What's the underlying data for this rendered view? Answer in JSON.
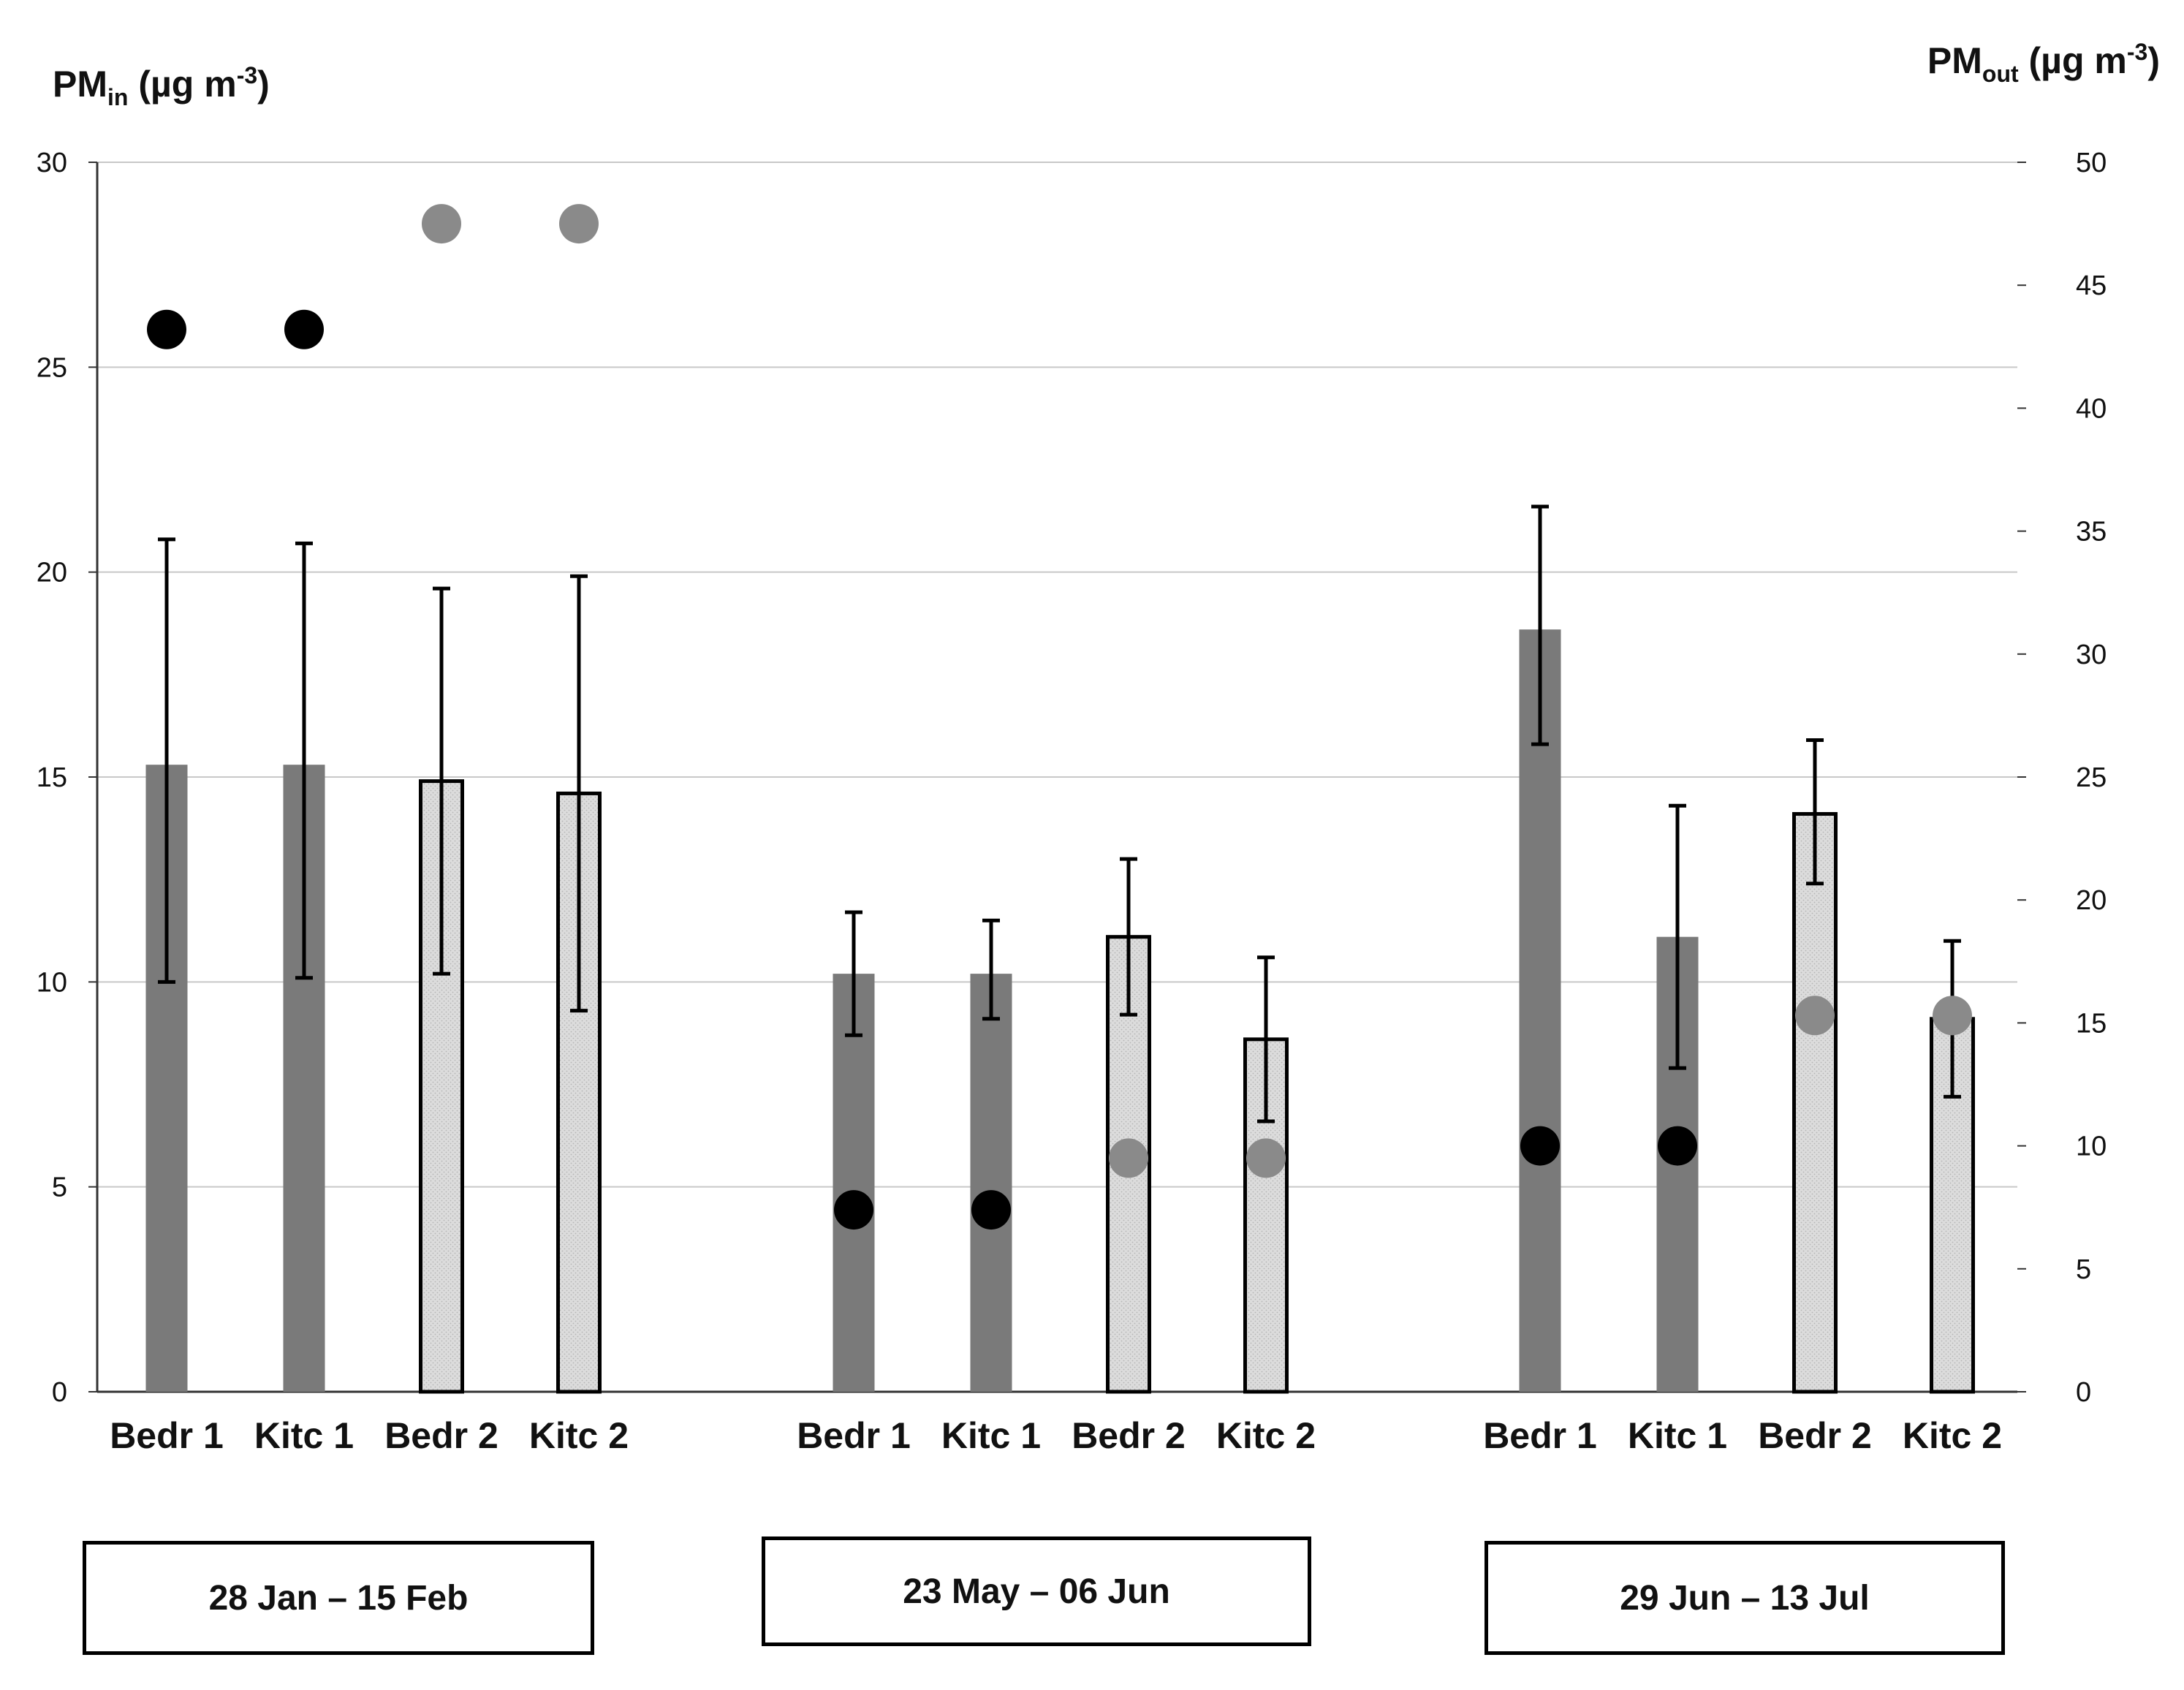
{
  "chart_data": {
    "type": "bar",
    "title": "",
    "left_axis": {
      "label_main": "PM",
      "label_sub": "in",
      "label_unit_pre": " (µg m",
      "label_unit_sup": "-3",
      "label_unit_post": ")",
      "ylim": [
        0,
        30
      ],
      "ticks": [
        0,
        5,
        10,
        15,
        20,
        25,
        30
      ]
    },
    "right_axis": {
      "label_main": "PM",
      "label_sub": "out",
      "label_unit_pre": " (µg m",
      "label_unit_sup": "-3",
      "label_unit_post": ")",
      "ylim": [
        0,
        50
      ],
      "ticks": [
        0,
        5,
        10,
        15,
        20,
        25,
        30,
        35,
        40,
        45,
        50
      ]
    },
    "grid": true,
    "groups": [
      {
        "period": "28 Jan – 15 Feb",
        "bars": [
          {
            "category": "Bedr 1",
            "style": "dark",
            "value": 15.3,
            "err_low": 10.0,
            "err_high": 20.8,
            "pm_out": 43.2,
            "dot": "black"
          },
          {
            "category": "Kitc 1",
            "style": "dark",
            "value": 15.3,
            "err_low": 10.1,
            "err_high": 20.7,
            "pm_out": 43.2,
            "dot": "black"
          },
          {
            "category": "Bedr 2",
            "style": "light",
            "value": 14.9,
            "err_low": 10.2,
            "err_high": 19.6,
            "pm_out": 47.5,
            "dot": "gray"
          },
          {
            "category": "Kitc 2",
            "style": "light",
            "value": 14.6,
            "err_low": 9.3,
            "err_high": 19.9,
            "pm_out": 47.5,
            "dot": "gray"
          }
        ]
      },
      {
        "period": "23 May – 06 Jun",
        "bars": [
          {
            "category": "Bedr 1",
            "style": "dark",
            "value": 10.2,
            "err_low": 8.7,
            "err_high": 11.7,
            "pm_out": 7.4,
            "dot": "black"
          },
          {
            "category": "Kitc 1",
            "style": "dark",
            "value": 10.2,
            "err_low": 9.1,
            "err_high": 11.5,
            "pm_out": 7.4,
            "dot": "black"
          },
          {
            "category": "Bedr 2",
            "style": "light",
            "value": 11.1,
            "err_low": 9.2,
            "err_high": 13.0,
            "pm_out": 9.5,
            "dot": "gray"
          },
          {
            "category": "Kitc 2",
            "style": "light",
            "value": 8.6,
            "err_low": 6.6,
            "err_high": 10.6,
            "pm_out": 9.5,
            "dot": "gray"
          }
        ]
      },
      {
        "period": "29 Jun – 13 Jul",
        "bars": [
          {
            "category": "Bedr 1",
            "style": "dark",
            "value": 18.6,
            "err_low": 15.8,
            "err_high": 21.6,
            "pm_out": 10.0,
            "dot": "black"
          },
          {
            "category": "Kitc 1",
            "style": "dark",
            "value": 11.1,
            "err_low": 7.9,
            "err_high": 14.3,
            "pm_out": 10.0,
            "dot": "black"
          },
          {
            "category": "Bedr 2",
            "style": "light",
            "value": 14.1,
            "err_low": 12.4,
            "err_high": 15.9,
            "pm_out": 15.3,
            "dot": "gray"
          },
          {
            "category": "Kitc 2",
            "style": "light",
            "value": 9.1,
            "err_low": 7.2,
            "err_high": 11.0,
            "pm_out": 15.3,
            "dot": "gray"
          }
        ]
      }
    ]
  },
  "colors": {
    "dark_bar": "#7a7a7a",
    "light_bar": "#dcdcdc",
    "black_dot": "#000000",
    "gray_dot": "#8a8a8a",
    "grid": "#c8c8c8"
  }
}
